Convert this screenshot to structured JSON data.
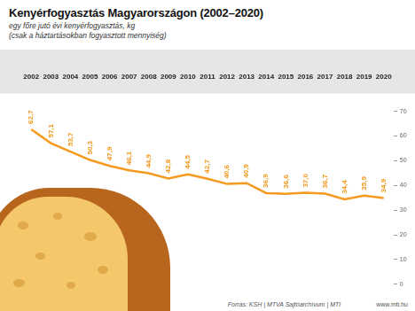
{
  "chart_data": {
    "type": "line",
    "title": "Kenyérfogyasztás Magyarországon (2002–2020)",
    "subtitle": [
      "egy főre jutó évi kenyérfogyasztás, kg",
      "(csak a háztartásokban fogyasztott mennyiség)"
    ],
    "annotations": [
      "Forrás: KSH | MTVA Sajtóarchívum | MTI",
      "www.mti.hu"
    ],
    "categories": [
      "2002",
      "2003",
      "2004",
      "2005",
      "2006",
      "2007",
      "2008",
      "2009",
      "2010",
      "2011",
      "2012",
      "2013",
      "2014",
      "2015",
      "2016",
      "2017",
      "2018",
      "2019",
      "2020"
    ],
    "values": [
      62.7,
      57.1,
      53.7,
      50.3,
      47.9,
      46.1,
      44.9,
      42.8,
      44.5,
      42.7,
      40.6,
      40.9,
      36.9,
      36.6,
      37.0,
      36.7,
      34.4,
      35.9,
      34.9
    ],
    "value_labels": [
      "62,7",
      "57,1",
      "53,7",
      "50,3",
      "47,9",
      "46,1",
      "44,9",
      "42,8",
      "44,5",
      "42,7",
      "40,6",
      "40,9",
      "36,9",
      "36,6",
      "37,0",
      "36,7",
      "34,4",
      "35,9",
      "34,9"
    ],
    "color": "#f39a1f",
    "marker": "none",
    "line_style": "solid",
    "data_labels": true,
    "ylim": [
      0,
      70
    ],
    "yticks": [
      0,
      10,
      20,
      30,
      40,
      50,
      60,
      70
    ],
    "grid": false
  }
}
